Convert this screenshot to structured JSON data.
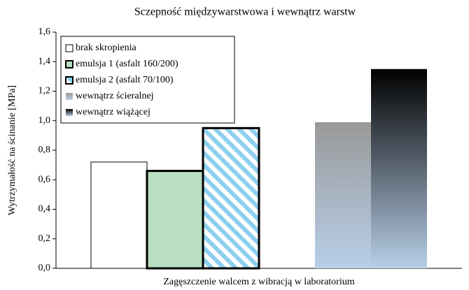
{
  "chart_data": {
    "type": "bar",
    "title": "Sczepność międzywarstwowa i wewnątrz warstw",
    "y_label": "Wytrzymałość na ścinanie [MPa]",
    "categories": [
      "Zagęszczenie walcem z wibracją w laboratorium"
    ],
    "ylim": [
      0,
      1.6
    ],
    "yticks": [
      {
        "value": 0,
        "label": "0,0"
      },
      {
        "value": 0.2,
        "label": "0,2"
      },
      {
        "value": 0.4,
        "label": "0,4"
      },
      {
        "value": 0.6,
        "label": "0,6"
      },
      {
        "value": 0.8,
        "label": "0,8"
      },
      {
        "value": 1.0,
        "label": "1,0"
      },
      {
        "value": 1.2,
        "label": "1,2"
      },
      {
        "value": 1.4,
        "label": "1,4"
      },
      {
        "value": 1.6,
        "label": "1,6"
      }
    ],
    "grid": false,
    "legend": "upper left",
    "series": [
      {
        "name": "brak skropienia",
        "color": "#ffffff",
        "style": "solid",
        "values": [
          0.72
        ]
      },
      {
        "name": "emulsja 1 (asfalt 160/200)",
        "color": "#b7dfc0",
        "style": "solid",
        "border": "thick",
        "values": [
          0.66
        ]
      },
      {
        "name": "emulsja 2 (asfalt 70/100)",
        "color": "#8ccfee",
        "style": "hatch",
        "border": "thick",
        "values": [
          0.95
        ]
      },
      {
        "name": "wewnątrz ścieralnej",
        "color": "#999999",
        "color2": "#b8cfe8",
        "style": "gradient",
        "values": [
          0.99
        ]
      },
      {
        "name": "wewnątrz wiążącej",
        "color": "#000000",
        "color2": "#b8cfe8",
        "style": "gradient",
        "values": [
          1.35
        ]
      }
    ]
  }
}
